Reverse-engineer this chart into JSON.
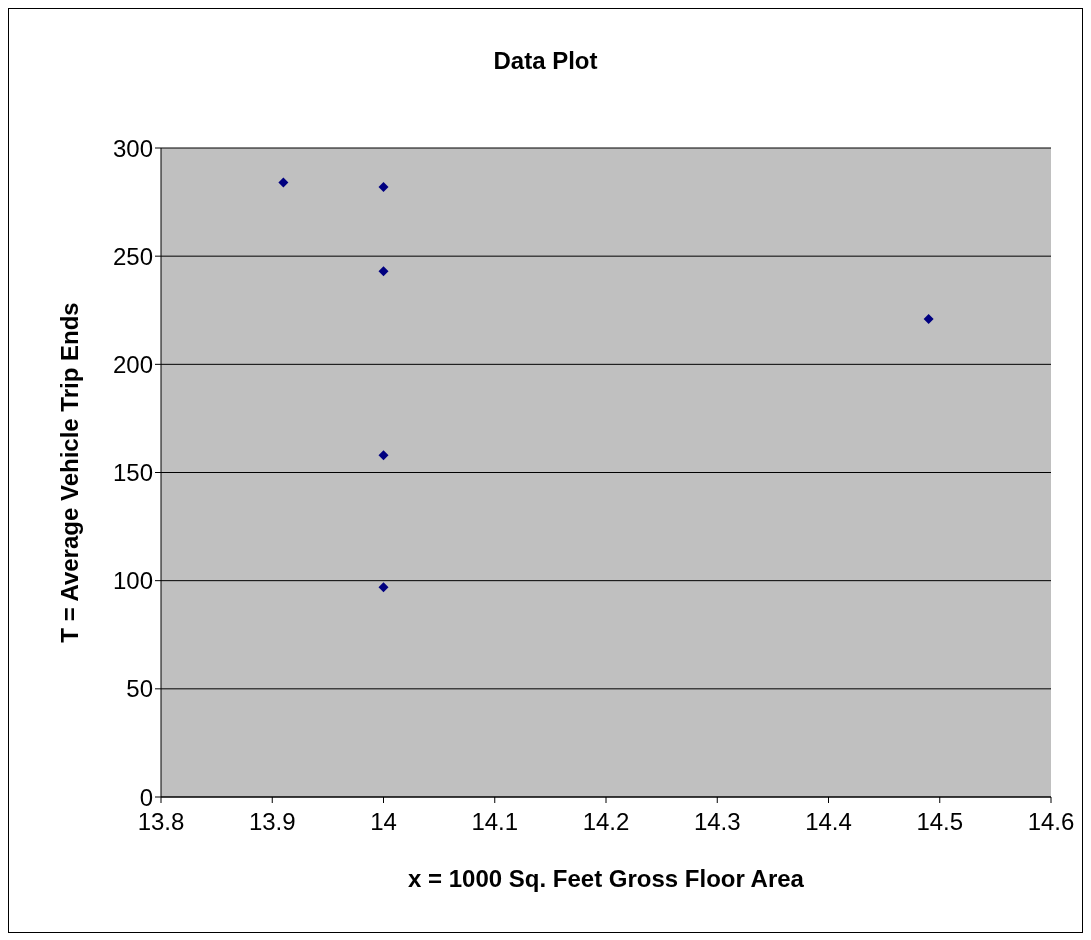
{
  "chart_data": {
    "type": "scatter",
    "title": "Data Plot",
    "xlabel": "x = 1000 Sq. Feet Gross Floor Area",
    "ylabel": "T = Average Vehicle Trip Ends",
    "x": [
      13.91,
      14,
      14,
      14,
      14,
      14.49
    ],
    "values": [
      284,
      282,
      243,
      158,
      97,
      221
    ],
    "color": "#000080",
    "marker": "diamond",
    "xlim": [
      13.8,
      14.6
    ],
    "xticks": [
      13.8,
      13.9,
      14,
      14.1,
      14.2,
      14.3,
      14.4,
      14.5,
      14.6
    ],
    "ylim": [
      0,
      300
    ],
    "yticks": [
      0,
      50,
      100,
      150,
      200,
      250,
      300
    ],
    "grid": "y"
  }
}
